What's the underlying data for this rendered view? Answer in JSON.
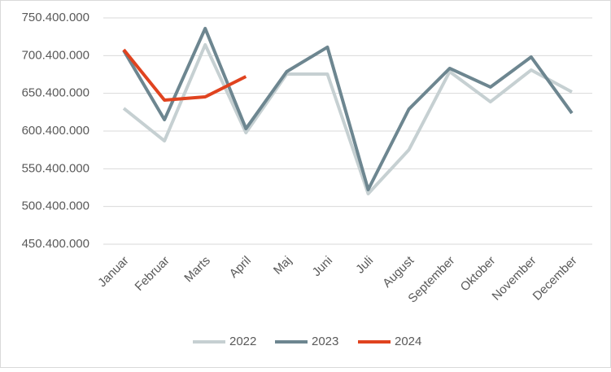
{
  "chart_data": {
    "type": "line",
    "categories": [
      "Januar",
      "Februar",
      "Marts",
      "April",
      "Maj",
      "Juni",
      "Juli",
      "August",
      "September",
      "Oktober",
      "November",
      "December"
    ],
    "series": [
      {
        "name": "2022",
        "color": "#c6d0d2",
        "values": [
          630600000,
          587400000,
          714800000,
          598200000,
          675900000,
          675900000,
          517300000,
          575600000,
          679200000,
          639200000,
          681300000,
          652200000
        ]
      },
      {
        "name": "2023",
        "color": "#6d8690",
        "values": [
          707200000,
          615500000,
          736400000,
          603600000,
          679200000,
          711600000,
          522700000,
          629500000,
          683500000,
          658700000,
          698600000,
          624100000
        ]
      },
      {
        "name": "2024",
        "color": "#e0431f",
        "values": [
          708300000,
          641400000,
          645700000,
          672700000,
          null,
          null,
          null,
          null,
          null,
          null,
          null,
          null
        ]
      }
    ],
    "ylim": [
      450400000,
      750400000
    ],
    "yticks": [
      {
        "value": 450400000,
        "label": "450.400.000"
      },
      {
        "value": 500400000,
        "label": "500.400.000"
      },
      {
        "value": 550400000,
        "label": "550.400.000"
      },
      {
        "value": 600400000,
        "label": "600.400.000"
      },
      {
        "value": 650400000,
        "label": "650.400.000"
      },
      {
        "value": 700400000,
        "label": "700.400.000"
      },
      {
        "value": 750400000,
        "label": "750.400.000"
      }
    ],
    "grid": true,
    "legend": "bottom"
  }
}
